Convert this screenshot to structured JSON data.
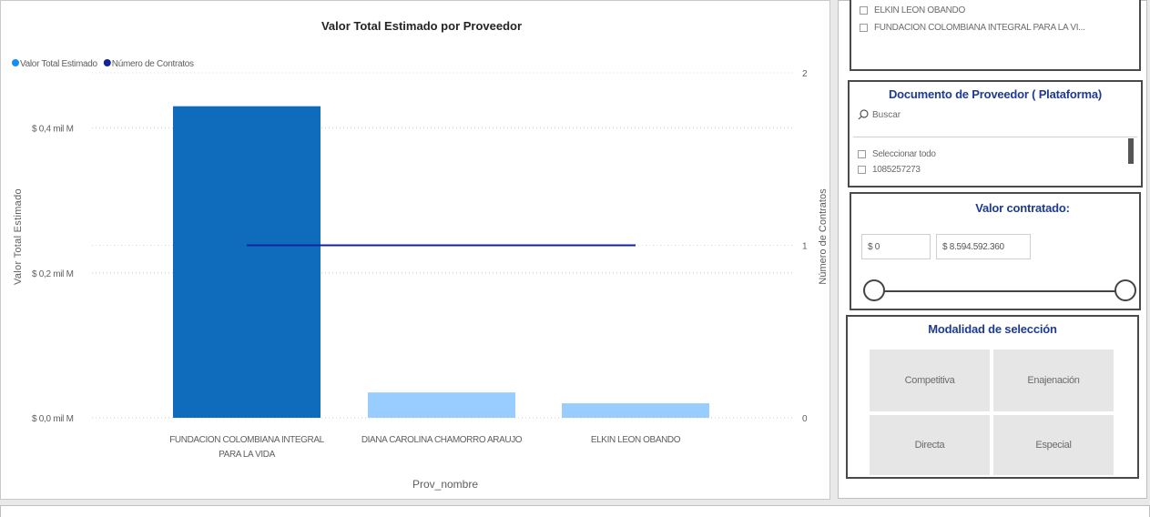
{
  "chart_data": {
    "type": "bar",
    "title": "Valor Total Estimado por Proveedor",
    "xlabel": "Prov_nombre",
    "ylabel": "Valor Total Estimado",
    "y2label": "Número de Contratos",
    "legend": [
      "Valor Total Estimado",
      "Número de Contratos"
    ],
    "legend_colors": [
      "#118dff",
      "#12239e"
    ],
    "categories": [
      "FUNDACION COLOMBIANA INTEGRAL PARA LA VIDA",
      "DIANA CAROLINA CHAMORRO ARAUJO",
      "ELKIN LEON OBANDO"
    ],
    "category_lines": [
      [
        "FUNDACION COLOMBIANA INTEGRAL",
        "PARA LA VIDA"
      ],
      [
        "DIANA CAROLINA CHAMORRO ARAUJO"
      ],
      [
        "ELKIN LEON OBANDO"
      ]
    ],
    "series": [
      {
        "name": "Valor Total Estimado",
        "type": "bar",
        "axis": "left",
        "values": [
          0.43,
          0.035,
          0.02
        ],
        "colors": [
          "#0f6cbd",
          "#99ccff",
          "#99ccff"
        ]
      },
      {
        "name": "Número de Contratos",
        "type": "line",
        "axis": "right",
        "values": [
          1,
          1,
          1
        ],
        "color": "#12239e"
      }
    ],
    "y_ticks": [
      "$ 0,0 mil M",
      "$ 0,2 mil M",
      "$ 0,4 mil M"
    ],
    "y_tick_values": [
      0,
      0.2,
      0.4
    ],
    "ylim": [
      0,
      0.5
    ],
    "y2_ticks": [
      "0",
      "1",
      "2"
    ],
    "y2_tick_values": [
      0,
      1,
      2
    ],
    "y2lim": [
      0,
      2.1
    ]
  },
  "provider_slicer": {
    "items": [
      "ELKIN LEON OBANDO",
      "FUNDACION COLOMBIANA INTEGRAL PARA LA VI..."
    ]
  },
  "document_slicer": {
    "title": "Documento de Proveedor ( Plataforma)",
    "search_placeholder": "Buscar",
    "items": [
      "Seleccionar todo",
      "1085257273"
    ]
  },
  "value_slicer": {
    "title": "Valor contratado:",
    "min_value": "$ 0",
    "max_value": "$ 8.594.592.360",
    "range_fraction": [
      0,
      1
    ]
  },
  "modality_slicer": {
    "title": "Modalidad de selección",
    "options": [
      "Competitiva",
      "Enajenación",
      "Directa",
      "Especial"
    ]
  }
}
